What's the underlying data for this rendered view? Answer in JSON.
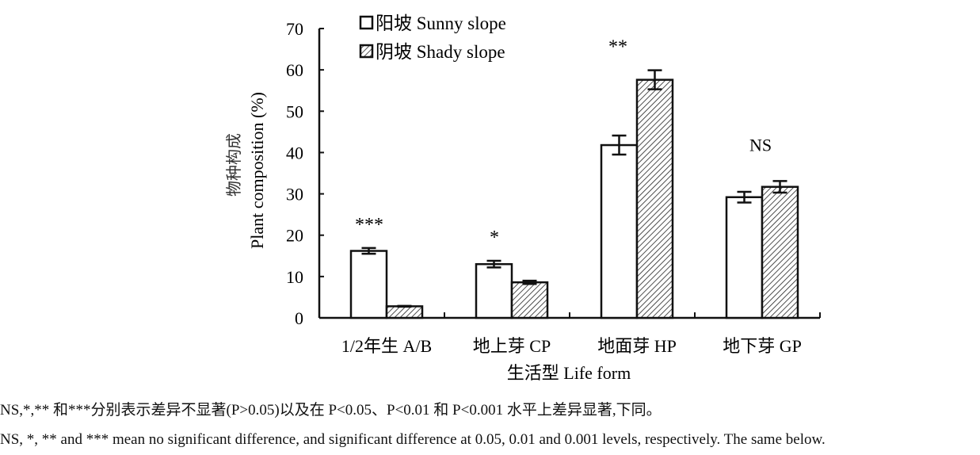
{
  "chart_data": {
    "type": "bar",
    "title": "",
    "xlabel": "生活型 Life form",
    "ylabel_cn": "物种构成",
    "ylabel": "Plant composition (%)",
    "ylim": [
      0,
      70
    ],
    "yticks": [
      0,
      10,
      20,
      30,
      40,
      50,
      60,
      70
    ],
    "categories": [
      "1/2年生 A/B",
      "地上芽 CP",
      "地面芽 HP",
      "地下芽 GP"
    ],
    "series": [
      {
        "name": "阳坡 Sunny slope",
        "values": [
          16.2,
          13.0,
          41.8,
          29.2
        ],
        "errors": [
          0.7,
          0.8,
          2.3,
          1.3
        ],
        "fill": "white"
      },
      {
        "name": "阴坡 Shady slope",
        "values": [
          2.8,
          8.6,
          57.6,
          31.7
        ],
        "errors": [
          0.1,
          0.4,
          2.3,
          1.4
        ],
        "fill": "hatched"
      }
    ],
    "significance": [
      "***",
      "*",
      "**",
      "NS"
    ],
    "legend_position": "top-left",
    "grid": false
  },
  "notes": {
    "cn": "NS,*,** 和***分别表示差异不显著(P>0.05)以及在 P<0.05、P<0.01 和 P<0.001 水平上差异显著,下同。",
    "en": "NS, *, ** and *** mean no significant difference, and significant difference at 0.05, 0.01 and 0.001 levels, respectively. The same below."
  }
}
